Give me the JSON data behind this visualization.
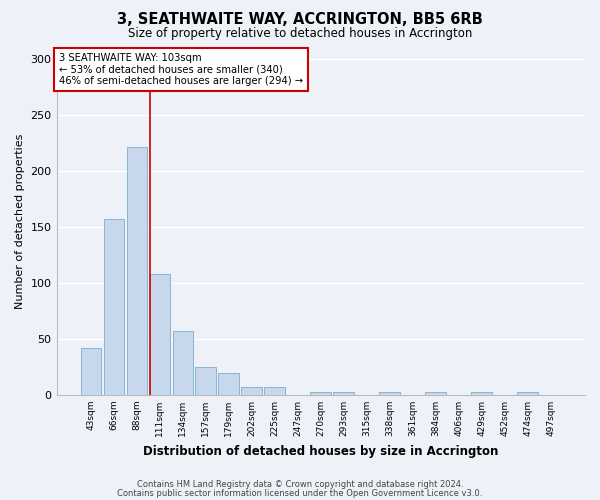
{
  "title": "3, SEATHWAITE WAY, ACCRINGTON, BB5 6RB",
  "subtitle": "Size of property relative to detached houses in Accrington",
  "xlabel": "Distribution of detached houses by size in Accrington",
  "ylabel": "Number of detached properties",
  "categories": [
    "43sqm",
    "66sqm",
    "88sqm",
    "111sqm",
    "134sqm",
    "157sqm",
    "179sqm",
    "202sqm",
    "225sqm",
    "247sqm",
    "270sqm",
    "293sqm",
    "315sqm",
    "338sqm",
    "361sqm",
    "384sqm",
    "406sqm",
    "429sqm",
    "452sqm",
    "474sqm",
    "497sqm"
  ],
  "values": [
    42,
    157,
    221,
    108,
    57,
    25,
    20,
    7,
    7,
    0,
    3,
    3,
    0,
    3,
    0,
    3,
    0,
    3,
    0,
    3,
    0
  ],
  "bar_color": "#c8d8ec",
  "bar_edge_color": "#7aaece",
  "property_line_x": 2.57,
  "annotation_text": "3 SEATHWAITE WAY: 103sqm\n← 53% of detached houses are smaller (340)\n46% of semi-detached houses are larger (294) →",
  "annotation_box_color": "#ffffff",
  "annotation_box_edge": "#cc0000",
  "vline_color": "#cc0000",
  "ylim": [
    0,
    310
  ],
  "yticks": [
    0,
    50,
    100,
    150,
    200,
    250,
    300
  ],
  "background_color": "#eef2f8",
  "grid_color": "#ffffff",
  "footer_line1": "Contains HM Land Registry data © Crown copyright and database right 2024.",
  "footer_line2": "Contains public sector information licensed under the Open Government Licence v3.0."
}
